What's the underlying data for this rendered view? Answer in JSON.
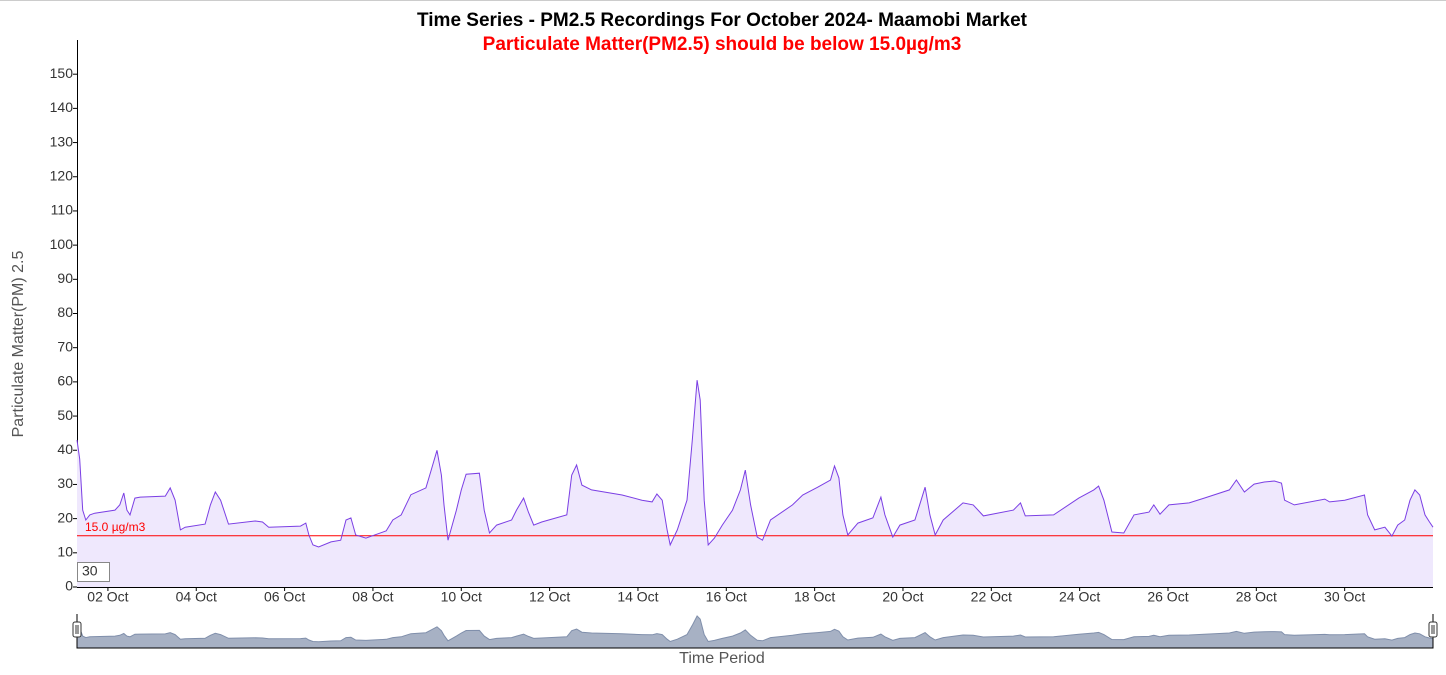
{
  "chart_data": {
    "type": "line",
    "title": "Time Series - PM2.5 Recordings For October 2024- Maamobi Market",
    "subtitle": "Particulate Matter(PM2.5) should be below 15.0µg/m3",
    "y_label": "Particulate Matter(PM) 2.5",
    "x_label": "Time Period",
    "roll_period": 30,
    "color": "#7b3fe4",
    "fill_color": "#efe8fd",
    "threshold": {
      "value": 15,
      "label": "15.0 µg/m3",
      "color": "#ff0000"
    },
    "xlim": [
      1.3,
      32
    ],
    "ylim": [
      0,
      160
    ],
    "yticks": [
      0,
      10,
      20,
      30,
      40,
      50,
      60,
      70,
      80,
      90,
      100,
      110,
      120,
      130,
      140,
      150
    ],
    "xticks": [
      {
        "value": 2,
        "label": "02 Oct"
      },
      {
        "value": 4,
        "label": "04 Oct"
      },
      {
        "value": 6,
        "label": "06 Oct"
      },
      {
        "value": 8,
        "label": "08 Oct"
      },
      {
        "value": 10,
        "label": "10 Oct"
      },
      {
        "value": 12,
        "label": "12 Oct"
      },
      {
        "value": 14,
        "label": "14 Oct"
      },
      {
        "value": 16,
        "label": "16 Oct"
      },
      {
        "value": 18,
        "label": "18 Oct"
      },
      {
        "value": 20,
        "label": "20 Oct"
      },
      {
        "value": 22,
        "label": "22 Oct"
      },
      {
        "value": 24,
        "label": "24 Oct"
      },
      {
        "value": 26,
        "label": "26 Oct"
      },
      {
        "value": 28,
        "label": "28 Oct"
      },
      {
        "value": 30,
        "label": "30 Oct"
      }
    ],
    "x": [
      1.3,
      1.36,
      1.43,
      1.5,
      1.59,
      1.7,
      2.16,
      2.27,
      2.36,
      2.43,
      2.5,
      2.61,
      2.73,
      3.3,
      3.41,
      3.52,
      3.64,
      3.75,
      4.2,
      4.32,
      4.43,
      4.55,
      4.73,
      5.34,
      5.5,
      5.64,
      6.36,
      6.48,
      6.55,
      6.64,
      6.77,
      7.05,
      7.27,
      7.39,
      7.5,
      7.61,
      7.84,
      8.3,
      8.45,
      8.64,
      8.86,
      9.2,
      9.32,
      9.45,
      9.55,
      9.61,
      9.7,
      9.89,
      10.0,
      10.11,
      10.41,
      10.52,
      10.64,
      10.8,
      11.14,
      11.25,
      11.41,
      11.52,
      11.64,
      11.82,
      12.39,
      12.5,
      12.61,
      12.73,
      12.95,
      13.64,
      14.09,
      14.32,
      14.43,
      14.55,
      14.66,
      14.73,
      14.89,
      15.11,
      15.23,
      15.34,
      15.41,
      15.5,
      15.59,
      15.73,
      15.91,
      16.14,
      16.32,
      16.43,
      16.55,
      16.7,
      16.82,
      17.0,
      17.5,
      17.73,
      18.07,
      18.36,
      18.45,
      18.55,
      18.64,
      18.75,
      18.98,
      19.32,
      19.5,
      19.59,
      19.77,
      19.93,
      20.27,
      20.41,
      20.5,
      20.61,
      20.73,
      20.91,
      21.36,
      21.59,
      21.82,
      22.5,
      22.66,
      22.77,
      23.41,
      23.98,
      24.32,
      24.43,
      24.55,
      24.73,
      25.0,
      25.23,
      25.57,
      25.68,
      25.82,
      26.02,
      26.48,
      26.82,
      27.39,
      27.55,
      27.73,
      27.95,
      28.18,
      28.41,
      28.57,
      28.64,
      28.86,
      29.55,
      29.66,
      30.0,
      30.45,
      30.52,
      30.68,
      30.91,
      31.07,
      31.2,
      31.36,
      31.48,
      31.59,
      31.7,
      31.82,
      31.92,
      32.0
    ],
    "values": [
      43.0,
      37.4,
      22.5,
      19.6,
      21.1,
      21.6,
      22.5,
      24.0,
      27.5,
      22.5,
      21.1,
      26.0,
      26.3,
      26.6,
      29.0,
      25.4,
      16.7,
      17.5,
      18.4,
      24.0,
      27.8,
      25.4,
      18.4,
      19.3,
      19.0,
      17.5,
      17.8,
      18.7,
      15.2,
      12.3,
      11.7,
      13.2,
      13.7,
      19.6,
      20.2,
      15.2,
      14.3,
      16.4,
      19.6,
      21.1,
      27.0,
      29.0,
      34.2,
      40.0,
      32.7,
      24.0,
      13.7,
      22.5,
      28.4,
      33.0,
      33.3,
      22.5,
      15.8,
      18.1,
      19.6,
      22.5,
      26.0,
      21.9,
      18.1,
      19.0,
      21.1,
      32.7,
      35.7,
      29.8,
      28.4,
      26.9,
      25.4,
      24.9,
      27.2,
      25.4,
      16.7,
      12.3,
      16.7,
      25.4,
      43.0,
      60.5,
      54.7,
      25.4,
      12.3,
      14.3,
      18.1,
      22.5,
      28.4,
      34.2,
      24.0,
      14.6,
      13.7,
      19.6,
      24.0,
      26.9,
      29.2,
      31.3,
      35.4,
      31.9,
      21.1,
      15.2,
      18.7,
      20.2,
      26.3,
      21.1,
      14.6,
      18.1,
      19.6,
      25.4,
      29.2,
      21.1,
      15.2,
      19.6,
      24.6,
      24.0,
      20.8,
      22.5,
      24.6,
      20.8,
      21.1,
      26.0,
      28.4,
      29.5,
      25.4,
      16.1,
      15.8,
      21.1,
      21.9,
      24.0,
      21.3,
      24.0,
      24.6,
      26.0,
      28.4,
      31.3,
      27.8,
      30.1,
      30.7,
      31.0,
      30.4,
      25.4,
      24.0,
      25.7,
      24.9,
      25.4,
      26.9,
      21.1,
      16.7,
      17.5,
      14.9,
      18.1,
      19.6,
      25.4,
      28.4,
      26.9,
      21.1,
      19.0,
      17.5
    ]
  }
}
